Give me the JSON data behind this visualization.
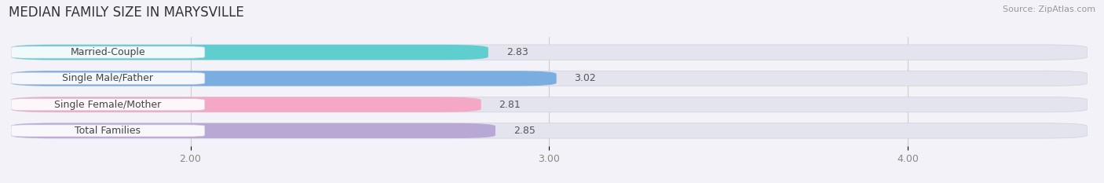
{
  "title": "MEDIAN FAMILY SIZE IN MARYSVILLE",
  "source": "Source: ZipAtlas.com",
  "categories": [
    "Married-Couple",
    "Single Male/Father",
    "Single Female/Mother",
    "Total Families"
  ],
  "values": [
    2.83,
    3.02,
    2.81,
    2.85
  ],
  "bar_colors": [
    "#5ecece",
    "#7aaee0",
    "#f4a8c5",
    "#b8a8d4"
  ],
  "xlim": [
    1.5,
    4.5
  ],
  "xmin": 1.5,
  "xticks": [
    2.0,
    3.0,
    4.0
  ],
  "xtick_labels": [
    "2.00",
    "3.00",
    "4.00"
  ],
  "background_color": "#f2f2f8",
  "bar_bg_color": "#e4e4ee",
  "title_fontsize": 12,
  "label_fontsize": 9,
  "value_fontsize": 9,
  "bar_height": 0.58,
  "label_box_color": "#ffffff",
  "figsize": [
    14.06,
    2.33
  ],
  "dpi": 100
}
